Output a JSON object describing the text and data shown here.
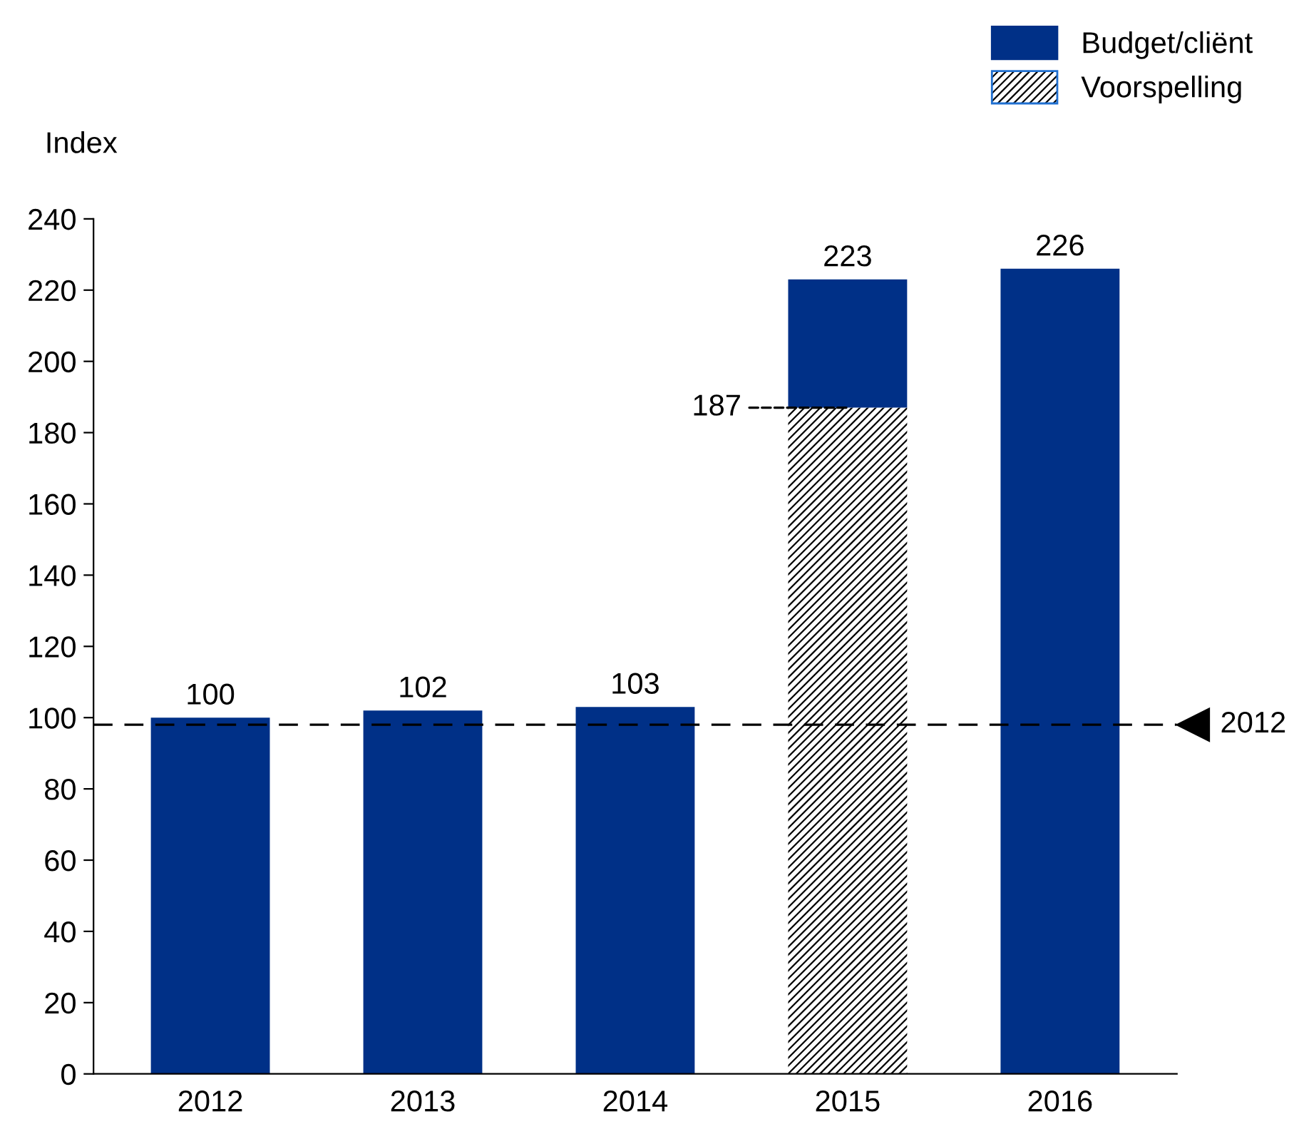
{
  "chart_data": {
    "type": "bar",
    "ylabel": "Index",
    "categories": [
      "2012",
      "2013",
      "2014",
      "2015",
      "2016"
    ],
    "stacked": true,
    "series": [
      {
        "name": "Voorspelling",
        "color": "#ffffff",
        "values": [
          null,
          null,
          null,
          187,
          null
        ],
        "value_labels": [
          null,
          null,
          null,
          "187",
          null
        ]
      },
      {
        "name": "Budget/cliënt",
        "color": "#003087",
        "values": [
          100,
          102,
          103,
          36,
          226
        ]
      }
    ],
    "totals": [
      "100",
      "102",
      "103",
      "223",
      "226"
    ],
    "ylim": [
      0,
      240
    ],
    "yticks": [
      0,
      20,
      40,
      60,
      80,
      100,
      120,
      140,
      160,
      180,
      200,
      220,
      240
    ],
    "ref_lines": [
      {
        "axis": "y",
        "value": 98,
        "line_style": "dashed",
        "color": "#000000"
      }
    ],
    "annotations": [
      "2012"
    ],
    "grid": false,
    "legend": "top right"
  }
}
